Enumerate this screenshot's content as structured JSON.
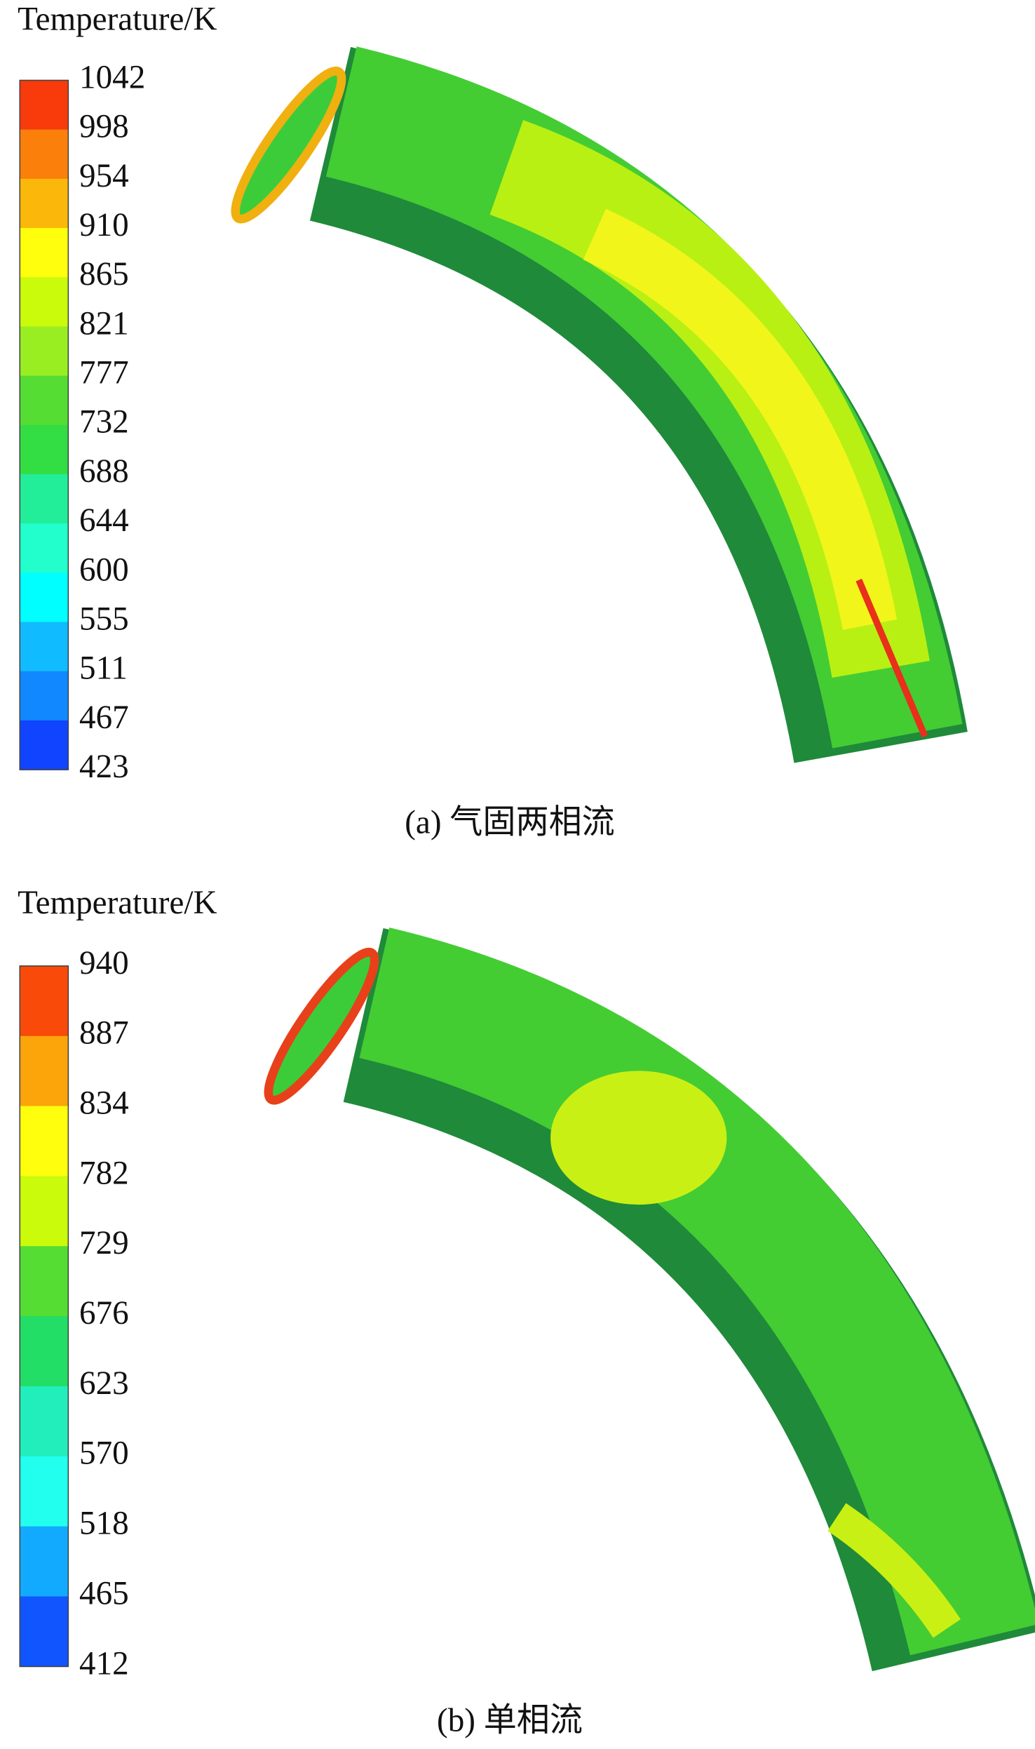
{
  "panels": [
    {
      "legend": {
        "title": "Temperature/K",
        "labels": [
          1042,
          998,
          954,
          910,
          865,
          821,
          777,
          732,
          688,
          644,
          600,
          555,
          511,
          467,
          423
        ],
        "colors": [
          "#f93a0a",
          "#fb7f0b",
          "#fcb80a",
          "#ffff0d",
          "#c9fb0b",
          "#99ee22",
          "#55dd33",
          "#33dd44",
          "#22ee99",
          "#22ffcc",
          "#00ffff",
          "#11bbff",
          "#1188ff",
          "#1144ff"
        ]
      },
      "caption": "(a) 气固两相流"
    },
    {
      "legend": {
        "title": "Temperature/K",
        "labels": [
          940,
          887,
          834,
          782,
          729,
          676,
          623,
          570,
          518,
          465,
          412
        ],
        "colors": [
          "#f94a0a",
          "#fca50b",
          "#ffff0d",
          "#c9fb0b",
          "#55dd33",
          "#22dd66",
          "#22eebb",
          "#22ffee",
          "#11aaff",
          "#1155ff"
        ]
      },
      "caption": "(b) 单相流"
    }
  ]
}
